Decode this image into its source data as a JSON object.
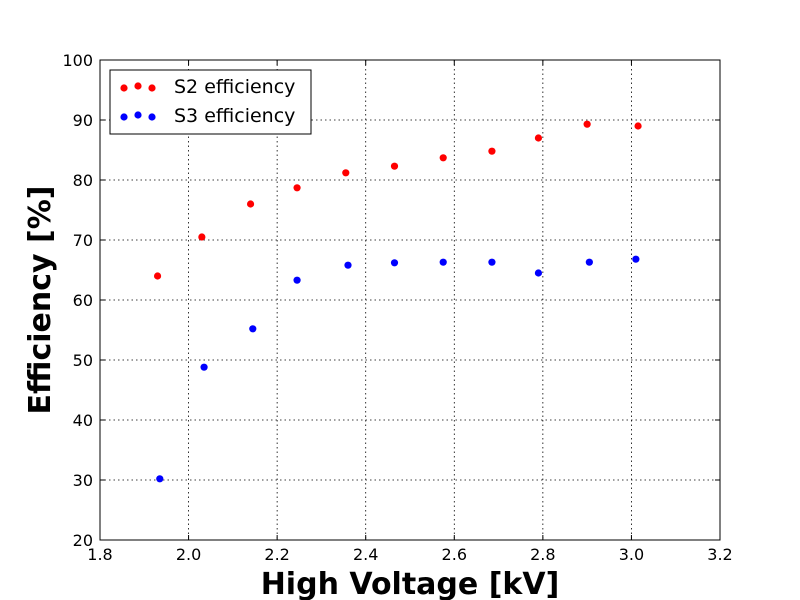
{
  "chart_data": {
    "type": "scatter",
    "xlabel": "High Voltage [kV]",
    "ylabel": "Efficiency [%]",
    "xlim": [
      1.8,
      3.2
    ],
    "ylim": [
      20,
      100
    ],
    "xticks": [
      "1.8",
      "2.0",
      "2.2",
      "2.4",
      "2.6",
      "2.8",
      "3.0",
      "3.2"
    ],
    "yticks": [
      "20",
      "30",
      "40",
      "50",
      "60",
      "70",
      "80",
      "90",
      "100"
    ],
    "grid": true,
    "legend_position": "top-left",
    "series": [
      {
        "name": "S2 efficiency",
        "color": "#ff0000",
        "x": [
          1.93,
          2.03,
          2.14,
          2.245,
          2.355,
          2.465,
          2.575,
          2.685,
          2.79,
          2.9,
          3.015
        ],
        "y": [
          64.0,
          70.5,
          76.0,
          78.7,
          81.2,
          82.3,
          83.7,
          84.8,
          87.0,
          89.3,
          89.0
        ]
      },
      {
        "name": "S3 efficiency",
        "color": "#0000ff",
        "x": [
          1.935,
          2.035,
          2.145,
          2.245,
          2.36,
          2.465,
          2.575,
          2.685,
          2.79,
          2.905,
          3.01
        ],
        "y": [
          30.2,
          48.8,
          55.2,
          63.3,
          65.8,
          66.2,
          66.3,
          66.3,
          64.5,
          66.3,
          66.8
        ]
      }
    ]
  }
}
